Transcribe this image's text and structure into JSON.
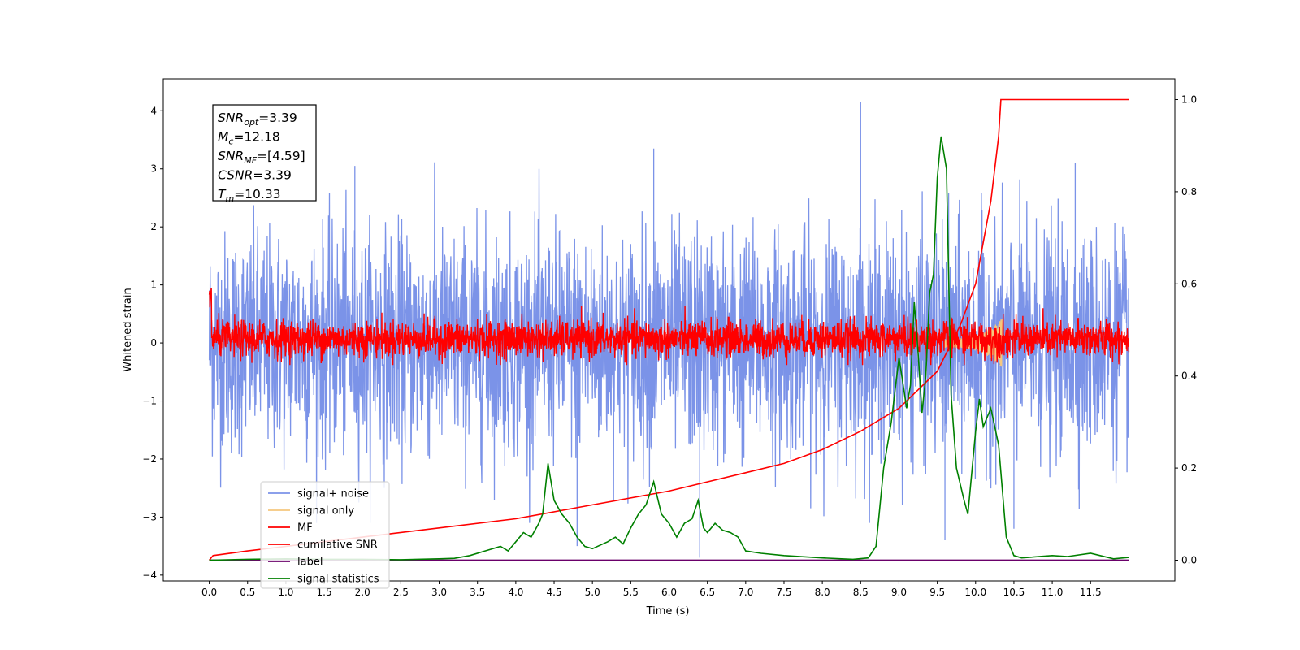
{
  "chart_data": {
    "type": "line",
    "xlabel": "Time (s)",
    "ylabel": "Whitened strain",
    "xlim": [
      -0.6,
      12.6
    ],
    "ylim": [
      -4.1,
      4.55
    ],
    "y2lim": [
      -0.045,
      1.045
    ],
    "x_ticks": [
      "0.0",
      "0.5",
      "1.0",
      "1.5",
      "2.0",
      "2.5",
      "3.0",
      "3.5",
      "4.0",
      "4.5",
      "5.0",
      "5.5",
      "6.0",
      "6.5",
      "7.0",
      "7.5",
      "8.0",
      "8.5",
      "9.0",
      "9.5",
      "10.0",
      "10.5",
      "11.0",
      "11.5"
    ],
    "y_ticks": [
      "−4",
      "−3",
      "−2",
      "−1",
      "0",
      "1",
      "2",
      "3",
      "4"
    ],
    "y2_ticks": [
      "0.0",
      "0.2",
      "0.4",
      "0.6",
      "0.8",
      "1.0"
    ],
    "annotation": {
      "lines": [
        {
          "sym": "SNR",
          "sub": "opt",
          "val": "=3.39"
        },
        {
          "sym": "M",
          "sub": "c",
          "val": "=12.18"
        },
        {
          "sym": "SNR",
          "sub": "MF",
          "val": "=[4.59]"
        },
        {
          "sym": "CSNR",
          "sub": "",
          "val": "=3.39"
        },
        {
          "sym": "T",
          "sub": "m",
          "val": "=10.33"
        }
      ]
    },
    "series": [
      {
        "name": "signal+ noise",
        "color": "#7b93e8",
        "axis": "left",
        "t_range": [
          0,
          12.0
        ],
        "amplitude_std": 1.0,
        "range": [
          -3.7,
          4.15
        ]
      },
      {
        "name": "signal only",
        "color": "#f5c77e",
        "axis": "left",
        "t_range": [
          0,
          12.0
        ]
      },
      {
        "name": "MF",
        "color": "#ff0000",
        "axis": "left",
        "t_range": [
          0,
          12.0
        ],
        "range": [
          -0.4,
          1.0
        ]
      },
      {
        "name": "cumilative SNR",
        "color": "#ff0000",
        "axis": "right",
        "t_range": [
          0,
          12.0
        ],
        "x": [
          0,
          0.05,
          0.5,
          1,
          2,
          3,
          4,
          5,
          6,
          7,
          7.5,
          8,
          8.5,
          9,
          9.5,
          9.8,
          10.0,
          10.2,
          10.3,
          10.33,
          12.0
        ],
        "y": [
          0.0,
          0.01,
          0.02,
          0.03,
          0.05,
          0.07,
          0.09,
          0.12,
          0.15,
          0.19,
          0.21,
          0.24,
          0.28,
          0.33,
          0.41,
          0.51,
          0.6,
          0.78,
          0.92,
          1.0,
          1.0
        ]
      },
      {
        "name": "label",
        "color": "#6a006a",
        "axis": "right",
        "x": [
          0,
          12.0
        ],
        "y": [
          0,
          0
        ]
      },
      {
        "name": "signal statistics",
        "color": "#008000",
        "axis": "right",
        "x": [
          0,
          0.5,
          1,
          1.5,
          2,
          2.5,
          3,
          3.2,
          3.4,
          3.6,
          3.8,
          3.9,
          4.0,
          4.1,
          4.2,
          4.3,
          4.35,
          4.42,
          4.5,
          4.6,
          4.7,
          4.8,
          4.9,
          5.0,
          5.2,
          5.3,
          5.4,
          5.5,
          5.6,
          5.7,
          5.8,
          5.9,
          6.0,
          6.1,
          6.2,
          6.3,
          6.38,
          6.45,
          6.5,
          6.6,
          6.7,
          6.8,
          6.9,
          7.0,
          7.2,
          7.5,
          8.0,
          8.4,
          8.6,
          8.7,
          8.8,
          8.9,
          9.0,
          9.1,
          9.15,
          9.2,
          9.25,
          9.3,
          9.35,
          9.4,
          9.45,
          9.5,
          9.55,
          9.62,
          9.68,
          9.75,
          9.85,
          9.9,
          10.0,
          10.05,
          10.1,
          10.2,
          10.3,
          10.4,
          10.5,
          10.6,
          11.0,
          11.2,
          11.5,
          11.8,
          12.0
        ],
        "y": [
          0,
          0.002,
          0.003,
          0.002,
          0.002,
          0.001,
          0.003,
          0.004,
          0.01,
          0.02,
          0.03,
          0.02,
          0.04,
          0.06,
          0.05,
          0.08,
          0.1,
          0.21,
          0.13,
          0.1,
          0.08,
          0.05,
          0.03,
          0.025,
          0.04,
          0.05,
          0.035,
          0.07,
          0.1,
          0.12,
          0.17,
          0.1,
          0.08,
          0.05,
          0.08,
          0.09,
          0.13,
          0.07,
          0.06,
          0.08,
          0.065,
          0.06,
          0.05,
          0.02,
          0.015,
          0.01,
          0.005,
          0.002,
          0.005,
          0.03,
          0.2,
          0.3,
          0.44,
          0.33,
          0.38,
          0.56,
          0.45,
          0.32,
          0.4,
          0.58,
          0.62,
          0.83,
          0.92,
          0.85,
          0.36,
          0.2,
          0.13,
          0.1,
          0.28,
          0.35,
          0.29,
          0.33,
          0.25,
          0.05,
          0.01,
          0.005,
          0.01,
          0.008,
          0.015,
          0.003,
          0.006
        ]
      }
    ],
    "legend_position": "lower-left"
  }
}
